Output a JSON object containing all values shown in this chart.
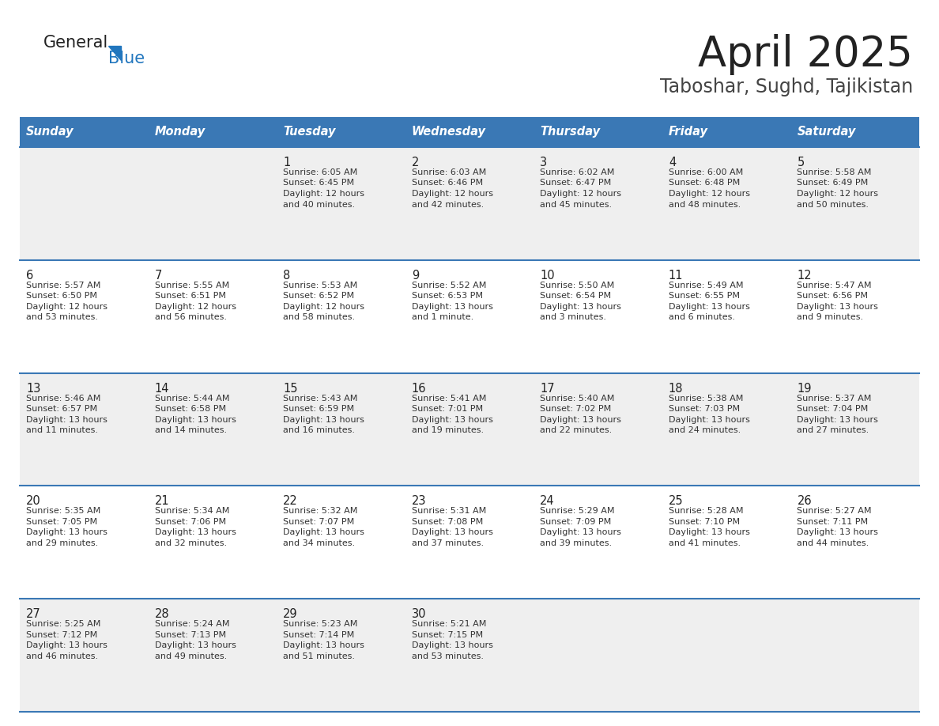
{
  "title": "April 2025",
  "subtitle": "Taboshar, Sughd, Tajikistan",
  "days_of_week": [
    "Sunday",
    "Monday",
    "Tuesday",
    "Wednesday",
    "Thursday",
    "Friday",
    "Saturday"
  ],
  "header_bg": "#3a78b5",
  "header_text": "#ffffff",
  "row_bg_light": "#efefef",
  "row_bg_white": "#ffffff",
  "row_separator": "#3a78b5",
  "text_color": "#333333",
  "day_num_color": "#222222",
  "calendar_data": [
    [
      {
        "day": null,
        "info": null
      },
      {
        "day": null,
        "info": null
      },
      {
        "day": 1,
        "info": "Sunrise: 6:05 AM\nSunset: 6:45 PM\nDaylight: 12 hours\nand 40 minutes."
      },
      {
        "day": 2,
        "info": "Sunrise: 6:03 AM\nSunset: 6:46 PM\nDaylight: 12 hours\nand 42 minutes."
      },
      {
        "day": 3,
        "info": "Sunrise: 6:02 AM\nSunset: 6:47 PM\nDaylight: 12 hours\nand 45 minutes."
      },
      {
        "day": 4,
        "info": "Sunrise: 6:00 AM\nSunset: 6:48 PM\nDaylight: 12 hours\nand 48 minutes."
      },
      {
        "day": 5,
        "info": "Sunrise: 5:58 AM\nSunset: 6:49 PM\nDaylight: 12 hours\nand 50 minutes."
      }
    ],
    [
      {
        "day": 6,
        "info": "Sunrise: 5:57 AM\nSunset: 6:50 PM\nDaylight: 12 hours\nand 53 minutes."
      },
      {
        "day": 7,
        "info": "Sunrise: 5:55 AM\nSunset: 6:51 PM\nDaylight: 12 hours\nand 56 minutes."
      },
      {
        "day": 8,
        "info": "Sunrise: 5:53 AM\nSunset: 6:52 PM\nDaylight: 12 hours\nand 58 minutes."
      },
      {
        "day": 9,
        "info": "Sunrise: 5:52 AM\nSunset: 6:53 PM\nDaylight: 13 hours\nand 1 minute."
      },
      {
        "day": 10,
        "info": "Sunrise: 5:50 AM\nSunset: 6:54 PM\nDaylight: 13 hours\nand 3 minutes."
      },
      {
        "day": 11,
        "info": "Sunrise: 5:49 AM\nSunset: 6:55 PM\nDaylight: 13 hours\nand 6 minutes."
      },
      {
        "day": 12,
        "info": "Sunrise: 5:47 AM\nSunset: 6:56 PM\nDaylight: 13 hours\nand 9 minutes."
      }
    ],
    [
      {
        "day": 13,
        "info": "Sunrise: 5:46 AM\nSunset: 6:57 PM\nDaylight: 13 hours\nand 11 minutes."
      },
      {
        "day": 14,
        "info": "Sunrise: 5:44 AM\nSunset: 6:58 PM\nDaylight: 13 hours\nand 14 minutes."
      },
      {
        "day": 15,
        "info": "Sunrise: 5:43 AM\nSunset: 6:59 PM\nDaylight: 13 hours\nand 16 minutes."
      },
      {
        "day": 16,
        "info": "Sunrise: 5:41 AM\nSunset: 7:01 PM\nDaylight: 13 hours\nand 19 minutes."
      },
      {
        "day": 17,
        "info": "Sunrise: 5:40 AM\nSunset: 7:02 PM\nDaylight: 13 hours\nand 22 minutes."
      },
      {
        "day": 18,
        "info": "Sunrise: 5:38 AM\nSunset: 7:03 PM\nDaylight: 13 hours\nand 24 minutes."
      },
      {
        "day": 19,
        "info": "Sunrise: 5:37 AM\nSunset: 7:04 PM\nDaylight: 13 hours\nand 27 minutes."
      }
    ],
    [
      {
        "day": 20,
        "info": "Sunrise: 5:35 AM\nSunset: 7:05 PM\nDaylight: 13 hours\nand 29 minutes."
      },
      {
        "day": 21,
        "info": "Sunrise: 5:34 AM\nSunset: 7:06 PM\nDaylight: 13 hours\nand 32 minutes."
      },
      {
        "day": 22,
        "info": "Sunrise: 5:32 AM\nSunset: 7:07 PM\nDaylight: 13 hours\nand 34 minutes."
      },
      {
        "day": 23,
        "info": "Sunrise: 5:31 AM\nSunset: 7:08 PM\nDaylight: 13 hours\nand 37 minutes."
      },
      {
        "day": 24,
        "info": "Sunrise: 5:29 AM\nSunset: 7:09 PM\nDaylight: 13 hours\nand 39 minutes."
      },
      {
        "day": 25,
        "info": "Sunrise: 5:28 AM\nSunset: 7:10 PM\nDaylight: 13 hours\nand 41 minutes."
      },
      {
        "day": 26,
        "info": "Sunrise: 5:27 AM\nSunset: 7:11 PM\nDaylight: 13 hours\nand 44 minutes."
      }
    ],
    [
      {
        "day": 27,
        "info": "Sunrise: 5:25 AM\nSunset: 7:12 PM\nDaylight: 13 hours\nand 46 minutes."
      },
      {
        "day": 28,
        "info": "Sunrise: 5:24 AM\nSunset: 7:13 PM\nDaylight: 13 hours\nand 49 minutes."
      },
      {
        "day": 29,
        "info": "Sunrise: 5:23 AM\nSunset: 7:14 PM\nDaylight: 13 hours\nand 51 minutes."
      },
      {
        "day": 30,
        "info": "Sunrise: 5:21 AM\nSunset: 7:15 PM\nDaylight: 13 hours\nand 53 minutes."
      },
      {
        "day": null,
        "info": null
      },
      {
        "day": null,
        "info": null
      },
      {
        "day": null,
        "info": null
      }
    ]
  ],
  "logo_text_general": "General",
  "logo_text_blue": "Blue",
  "logo_triangle_color": "#2176be",
  "logo_general_color": "#222222"
}
